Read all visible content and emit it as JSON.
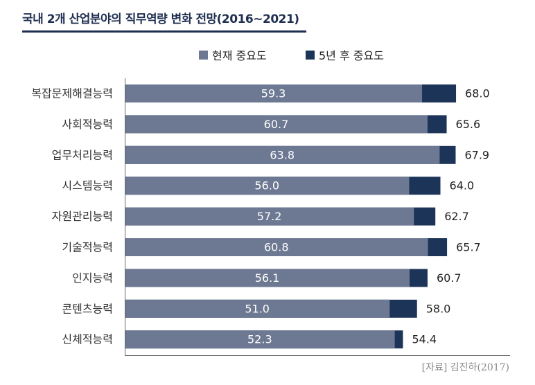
{
  "colors": {
    "current": "#6d7993",
    "future": "#1c3458",
    "title": "#1f2f50",
    "category_text": "#333333",
    "value_text_inside": "#ffffff",
    "value_text_outside": "#222222",
    "axis": "#666666"
  },
  "chart_data": {
    "type": "bar",
    "orientation": "horizontal",
    "title": "국내 2개 산업분야의 직무역량 변화 전망(2016~2021)",
    "categories": [
      "복잡문제해결능력",
      "사회적능력",
      "업무처리능력",
      "시스템능력",
      "자원관리능력",
      "기술적능력",
      "인지능력",
      "콘텐츠능력",
      "신체적능력"
    ],
    "series": [
      {
        "name": "현재 중요도",
        "values": [
          59.3,
          60.7,
          63.8,
          56.0,
          57.2,
          60.8,
          56.1,
          51.0,
          52.3
        ],
        "labels": [
          "59.3",
          "60.7",
          "63.8",
          "56.0",
          "57.2",
          "60.8",
          "56.1",
          "51.0",
          "52.3"
        ]
      },
      {
        "name": "5년 후 중요도",
        "values": [
          68.0,
          65.6,
          67.9,
          64.0,
          62.7,
          65.7,
          60.7,
          58.0,
          54.4
        ],
        "labels": [
          "68.0",
          "65.6",
          "67.9",
          "64.0",
          "62.7",
          "65.7",
          "60.7",
          "58.0",
          "54.4"
        ]
      }
    ],
    "legend": "top-center",
    "grid": false,
    "source": "[자료] 김진하(2017)"
  }
}
